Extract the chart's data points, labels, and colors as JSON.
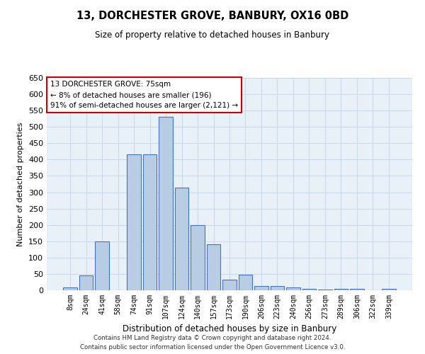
{
  "title": "13, DORCHESTER GROVE, BANBURY, OX16 0BD",
  "subtitle": "Size of property relative to detached houses in Banbury",
  "xlabel": "Distribution of detached houses by size in Banbury",
  "ylabel": "Number of detached properties",
  "categories": [
    "8sqm",
    "24sqm",
    "41sqm",
    "58sqm",
    "74sqm",
    "91sqm",
    "107sqm",
    "124sqm",
    "140sqm",
    "157sqm",
    "173sqm",
    "190sqm",
    "206sqm",
    "223sqm",
    "240sqm",
    "256sqm",
    "273sqm",
    "289sqm",
    "306sqm",
    "322sqm",
    "339sqm"
  ],
  "values": [
    8,
    45,
    150,
    0,
    415,
    415,
    530,
    315,
    200,
    140,
    33,
    48,
    14,
    12,
    8,
    4,
    3,
    5,
    5,
    0,
    5
  ],
  "bar_color": "#b8cce4",
  "bar_edge_color": "#4472c4",
  "annotation_box_text": "13 DORCHESTER GROVE: 75sqm\n← 8% of detached houses are smaller (196)\n91% of semi-detached houses are larger (2,121) →",
  "annotation_box_color": "#ffffff",
  "annotation_box_edge_color": "#cc0000",
  "ylim": [
    0,
    650
  ],
  "yticks": [
    0,
    50,
    100,
    150,
    200,
    250,
    300,
    350,
    400,
    450,
    500,
    550,
    600,
    650
  ],
  "grid_color": "#c8d8e8",
  "bg_color": "#e8f0f8",
  "footer_line1": "Contains HM Land Registry data © Crown copyright and database right 2024.",
  "footer_line2": "Contains public sector information licensed under the Open Government Licence v3.0."
}
